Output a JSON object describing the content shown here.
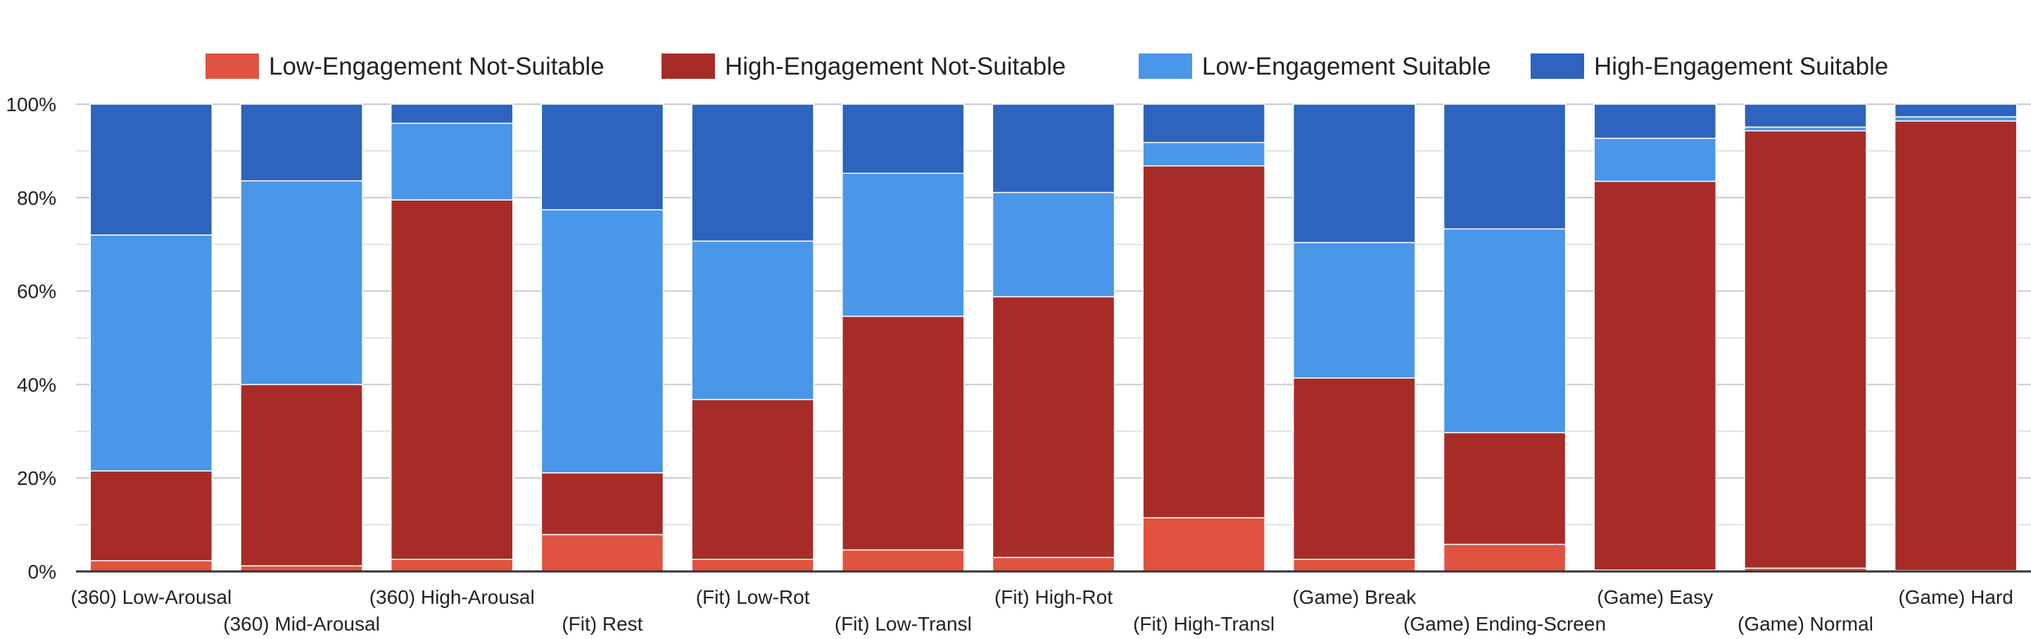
{
  "chart_data": {
    "type": "bar",
    "stacked": true,
    "normalized": true,
    "categories": [
      "(360) Low-Arousal",
      "(360) Mid-Arousal",
      "(360) High-Arousal",
      "(Fit) Rest",
      "(Fit) Low-Rot",
      "(Fit) Low-Transl",
      "(Fit) High-Rot",
      "(Fit) High-Transl",
      "(Game) Break",
      "(Game) Ending-Screen",
      "(Game) Easy",
      "(Game) Normal",
      "(Game) Hard"
    ],
    "series": [
      {
        "name": "Low-Engagement Not-Suitable",
        "color": "#e05340",
        "values": [
          2.3,
          1.2,
          2.6,
          7.9,
          2.6,
          4.6,
          3.0,
          11.5,
          2.6,
          5.8,
          0.3,
          0.7,
          0.2
        ]
      },
      {
        "name": "High-Engagement Not-Suitable",
        "color": "#a72c27",
        "values": [
          19.2,
          38.8,
          76.9,
          13.2,
          34.2,
          50.0,
          55.8,
          75.3,
          38.8,
          23.9,
          83.2,
          93.6,
          96.2
        ]
      },
      {
        "name": "Low-Engagement Suitable",
        "color": "#4a96e8",
        "values": [
          50.5,
          43.6,
          16.4,
          56.3,
          33.9,
          30.6,
          22.3,
          5.0,
          29.0,
          43.6,
          9.2,
          0.8,
          0.9
        ]
      },
      {
        "name": "High-Engagement Suitable",
        "color": "#2e63be",
        "values": [
          28.0,
          16.4,
          4.1,
          22.6,
          29.3,
          14.8,
          18.9,
          8.2,
          29.6,
          26.7,
          7.3,
          4.9,
          2.7
        ]
      }
    ],
    "ylim": [
      0,
      100
    ],
    "yticks": [
      "0%",
      "20%",
      "40%",
      "60%",
      "80%",
      "100%"
    ],
    "xlabel": "",
    "ylabel": "",
    "grid": true,
    "legend": "top"
  }
}
